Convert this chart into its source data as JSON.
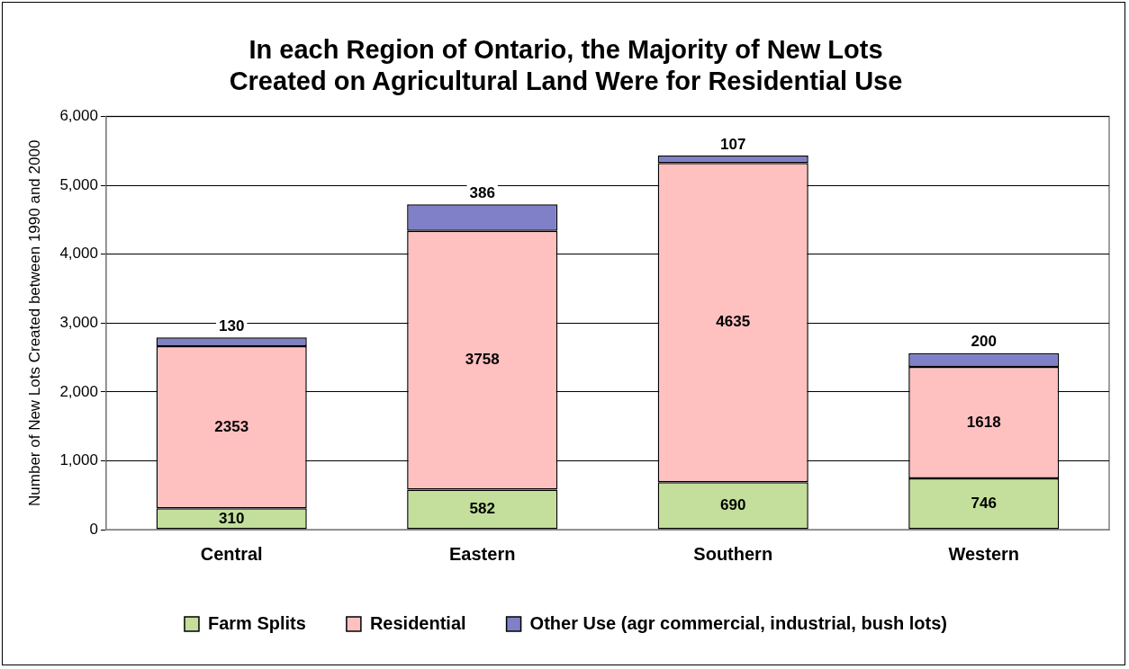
{
  "chart_data": {
    "type": "bar",
    "title": "In each Region of Ontario, the Majority of New Lots Created on Agricultural Land Were for Residential Use",
    "ylabel": "Number of New Lots Created between 1990 and 2000",
    "categories": [
      "Central",
      "Eastern",
      "Southern",
      "Western"
    ],
    "series": [
      {
        "name": "Farm Splits",
        "color": "#c3df9b",
        "values": [
          310,
          582,
          690,
          746
        ]
      },
      {
        "name": "Residential",
        "color": "#ffc0c0",
        "values": [
          2353,
          3758,
          4635,
          1618
        ]
      },
      {
        "name": "Other Use (agr commercial, industrial, bush lots)",
        "color": "#8080c8",
        "values": [
          130,
          386,
          107,
          200
        ]
      }
    ],
    "stacked": true,
    "ylim": [
      0,
      6000
    ],
    "yticks": [
      {
        "value": 0,
        "label": "0"
      },
      {
        "value": 1000,
        "label": "1,000"
      },
      {
        "value": 2000,
        "label": "2,000"
      },
      {
        "value": 3000,
        "label": "3,000"
      },
      {
        "value": 4000,
        "label": "4,000"
      },
      {
        "value": 5000,
        "label": "5,000"
      },
      {
        "value": 6000,
        "label": "6,000"
      }
    ],
    "grid": "y",
    "legend": "bottom",
    "data_labels": true
  }
}
